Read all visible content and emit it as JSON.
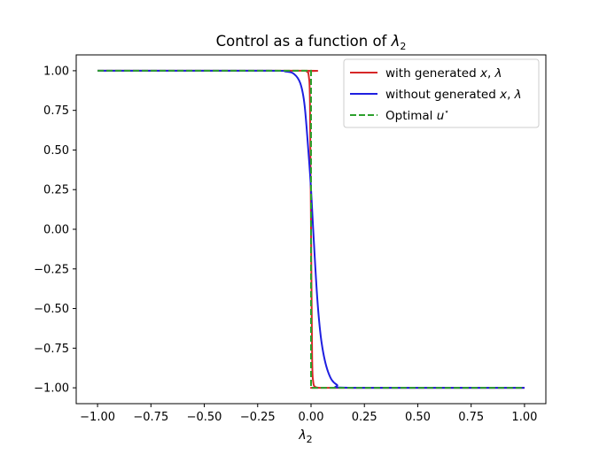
{
  "chart_data": {
    "type": "line",
    "title": "Control as a function of λ₂",
    "xlabel": "λ₂",
    "ylabel": "",
    "xlim": [
      -1.1,
      1.1
    ],
    "ylim": [
      -1.1,
      1.1
    ],
    "xticks": [
      -1.0,
      -0.75,
      -0.5,
      -0.25,
      0.0,
      0.25,
      0.5,
      0.75,
      1.0
    ],
    "xtick_labels": [
      "−1.00",
      "−0.75",
      "−0.50",
      "−0.25",
      "0.00",
      "0.25",
      "0.50",
      "0.75",
      "1.00"
    ],
    "yticks": [
      1.0,
      0.75,
      0.5,
      0.25,
      0.0,
      -0.25,
      -0.5,
      -0.75,
      -1.0
    ],
    "ytick_labels": [
      "1.00",
      "0.75",
      "0.50",
      "0.25",
      "0.00",
      "−0.25",
      "−0.50",
      "−0.75",
      "−1.00"
    ],
    "grid": false,
    "legend_position": "top-right",
    "series": [
      {
        "name": "with generated x, λ",
        "color": "#d62728",
        "style": "solid",
        "x": [
          -1.0,
          -0.05,
          -0.02,
          -0.01,
          -0.005,
          0.0,
          0.005,
          0.01,
          0.02,
          0.04,
          0.08,
          1.0
        ],
        "y": [
          1.0,
          1.0,
          0.995,
          0.96,
          0.8,
          0.0,
          -0.8,
          -0.96,
          -0.995,
          -1.0,
          -1.0,
          -1.0
        ]
      },
      {
        "name": "without generated x, λ",
        "color": "#1f1fe0",
        "style": "solid",
        "x": [
          -1.0,
          -0.2,
          -0.12,
          -0.08,
          -0.05,
          -0.03,
          -0.01,
          0.0,
          0.01,
          0.03,
          0.05,
          0.08,
          0.12,
          0.2,
          1.0
        ],
        "y": [
          1.0,
          1.0,
          0.995,
          0.98,
          0.92,
          0.78,
          0.45,
          0.25,
          0.0,
          -0.45,
          -0.72,
          -0.9,
          -0.98,
          -1.0,
          -1.0
        ]
      },
      {
        "name": "Optimal u*",
        "color": "#2ca02c",
        "style": "dashed",
        "x": [
          -1.0,
          0.0,
          0.0,
          1.0
        ],
        "y": [
          1.0,
          1.0,
          -1.0,
          -1.0
        ]
      }
    ]
  }
}
